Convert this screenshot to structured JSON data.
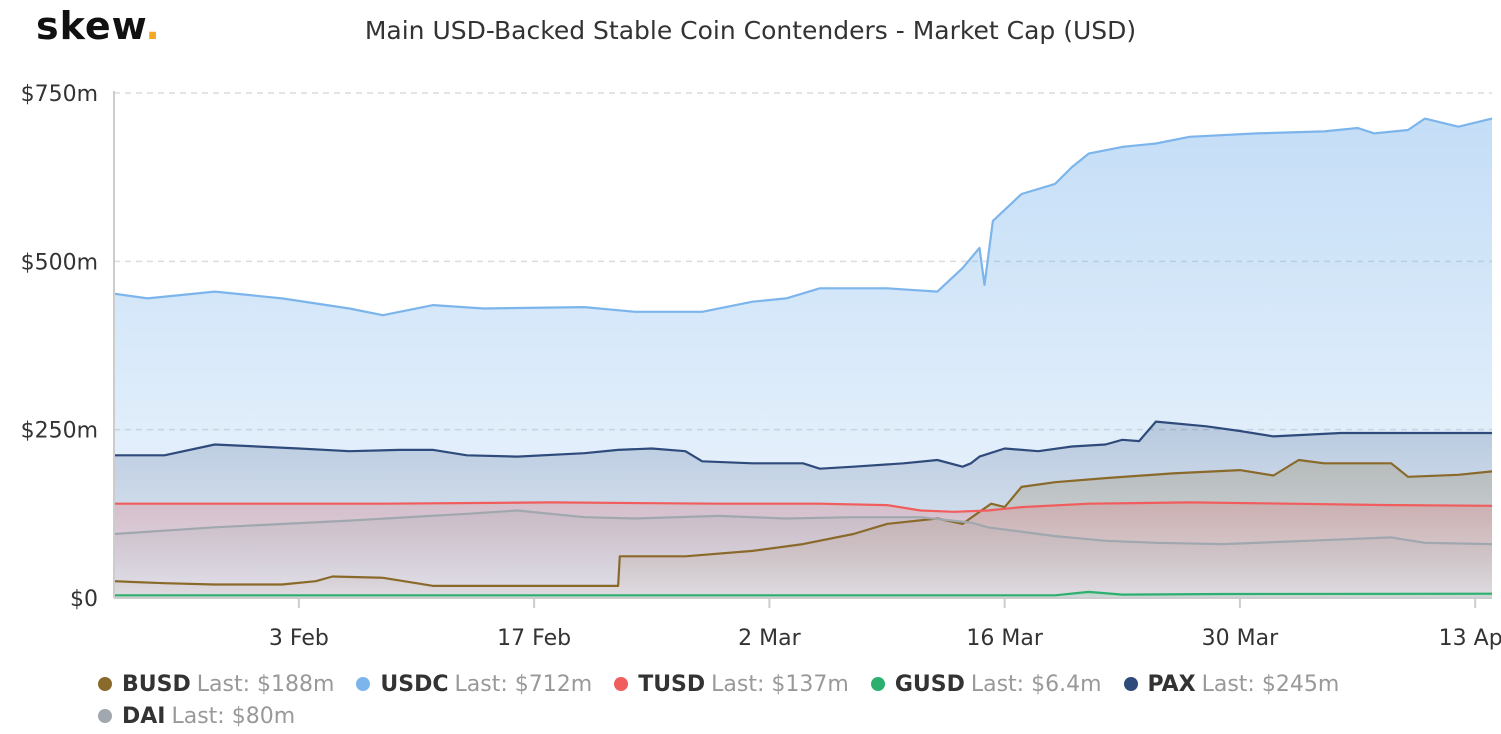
{
  "brand": {
    "name": "skew",
    "dot": "."
  },
  "chart_data": {
    "type": "area",
    "title": "Main USD-Backed Stable Coin Contenders - Market Cap (USD)",
    "xlabel": "",
    "ylabel": "",
    "x_ticks": [
      "3 Feb",
      "17 Feb",
      "2 Mar",
      "16 Mar",
      "30 Mar",
      "13 Apr"
    ],
    "x_tick_days": [
      35,
      49,
      63,
      77,
      91,
      105
    ],
    "x_range": [
      24,
      106
    ],
    "ylim": [
      0,
      750
    ],
    "y_ticks": [
      0,
      250,
      500,
      750
    ],
    "y_tick_labels": [
      "$0",
      "$250m",
      "$500m",
      "$750m"
    ],
    "grid": "horizontal dashed",
    "legend_position": "bottom",
    "series": [
      {
        "name": "BUSD",
        "last_label": "Last: $188m",
        "color": "#8a6a2a",
        "x": [
          24,
          27,
          30,
          34,
          36,
          37,
          40,
          42,
          43,
          46,
          52,
          54,
          54.1,
          58,
          62,
          65,
          68,
          70,
          73,
          74.5,
          75.5,
          76.2,
          77,
          78,
          80,
          83,
          87,
          91,
          93,
          94.5,
          96,
          100,
          101,
          104,
          106
        ],
        "y": [
          25,
          22,
          20,
          20,
          25,
          32,
          30,
          22,
          18,
          18,
          18,
          18,
          62,
          62,
          70,
          80,
          95,
          110,
          118,
          110,
          128,
          140,
          135,
          165,
          172,
          178,
          185,
          190,
          182,
          205,
          200,
          200,
          180,
          183,
          188
        ]
      },
      {
        "name": "USDC",
        "last_label": "Last: $712m",
        "color": "#7cb5ec",
        "x": [
          24,
          26,
          30,
          34,
          38,
          40,
          43,
          46,
          52,
          55,
          59,
          62,
          64,
          66,
          70,
          73,
          74.5,
          75.5,
          75.8,
          76.3,
          78,
          80,
          81,
          82,
          84,
          86,
          88,
          92,
          96,
          98,
          99,
          101,
          102,
          104,
          106
        ],
        "y": [
          452,
          445,
          455,
          445,
          430,
          420,
          435,
          430,
          432,
          425,
          425,
          440,
          445,
          460,
          460,
          455,
          490,
          520,
          465,
          560,
          600,
          615,
          640,
          660,
          670,
          675,
          685,
          690,
          693,
          698,
          690,
          695,
          712,
          700,
          712
        ]
      },
      {
        "name": "TUSD",
        "last_label": "Last: $137m",
        "color": "#f15c5c",
        "x": [
          24,
          30,
          40,
          50,
          60,
          66,
          70,
          72,
          74,
          76,
          78,
          82,
          88,
          94,
          100,
          106
        ],
        "y": [
          140,
          140,
          140,
          142,
          140,
          140,
          138,
          130,
          128,
          130,
          135,
          140,
          142,
          140,
          138,
          137
        ]
      },
      {
        "name": "GUSD",
        "last_label": "Last: $6.4m",
        "color": "#2db06f",
        "x": [
          24,
          40,
          60,
          80,
          82,
          84,
          90,
          106
        ],
        "y": [
          4,
          4,
          4,
          4,
          9,
          5,
          6,
          6.4
        ]
      },
      {
        "name": "PAX",
        "last_label": "Last: $245m",
        "color": "#2f4b7c",
        "x": [
          24,
          27,
          30,
          35,
          38,
          41,
          43,
          45,
          48,
          52,
          54,
          56,
          58,
          59,
          62,
          65,
          66,
          68,
          71,
          73,
          74.5,
          75,
          75.5,
          77,
          79,
          81,
          83,
          84,
          85,
          86,
          89,
          91,
          93,
          97,
          102,
          106
        ],
        "y": [
          212,
          212,
          228,
          222,
          218,
          220,
          220,
          212,
          210,
          215,
          220,
          222,
          218,
          203,
          200,
          200,
          192,
          195,
          200,
          205,
          195,
          200,
          210,
          222,
          218,
          225,
          228,
          235,
          233,
          262,
          255,
          248,
          240,
          245,
          245,
          245
        ]
      },
      {
        "name": "DAI",
        "last_label": "Last: $80m",
        "color": "#a0a7ae",
        "x": [
          24,
          30,
          38,
          45,
          48,
          52,
          55,
          60,
          64,
          68,
          72,
          75,
          76,
          80,
          83,
          86,
          90,
          95,
          100,
          102,
          106
        ],
        "y": [
          95,
          105,
          115,
          125,
          130,
          120,
          118,
          122,
          118,
          120,
          120,
          112,
          105,
          92,
          85,
          82,
          80,
          85,
          90,
          82,
          80
        ]
      }
    ]
  }
}
